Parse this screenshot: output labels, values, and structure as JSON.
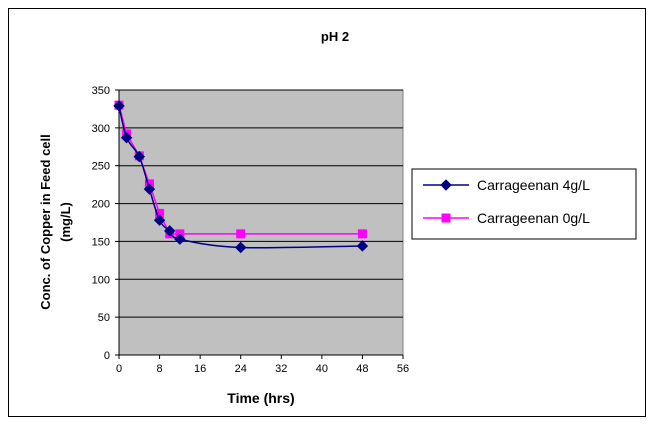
{
  "chart_data": {
    "type": "line",
    "title": "pH 2",
    "xlabel": "Time (hrs)",
    "ylabel_lines": [
      "Conc. of Copper in Feed cell",
      "(mg/L)"
    ],
    "xlim": [
      0,
      56
    ],
    "ylim": [
      0,
      350
    ],
    "xticks": [
      0,
      8,
      16,
      24,
      32,
      40,
      48,
      56
    ],
    "yticks": [
      0,
      50,
      100,
      150,
      200,
      250,
      300,
      350
    ],
    "grid": "horizontal",
    "legend_position": "right",
    "plot_background": "#c0c0c0",
    "series": [
      {
        "name": "Carrageenan 4g/L",
        "color": "#000080",
        "marker": "diamond",
        "smooth": true,
        "points": [
          [
            0,
            329
          ],
          [
            1.5,
            287
          ],
          [
            4,
            262
          ],
          [
            6,
            219
          ],
          [
            8,
            178
          ],
          [
            10,
            164
          ],
          [
            12,
            153
          ],
          [
            24,
            142
          ],
          [
            48,
            144
          ]
        ]
      },
      {
        "name": "Carrageenan 0g/L",
        "color": "#ff00ff",
        "marker": "square",
        "smooth": false,
        "points": [
          [
            0,
            330
          ],
          [
            1.5,
            292
          ],
          [
            4,
            263
          ],
          [
            6,
            226
          ],
          [
            8,
            187
          ],
          [
            10,
            160
          ],
          [
            12,
            160
          ],
          [
            24,
            160
          ],
          [
            48,
            160
          ]
        ]
      }
    ]
  }
}
